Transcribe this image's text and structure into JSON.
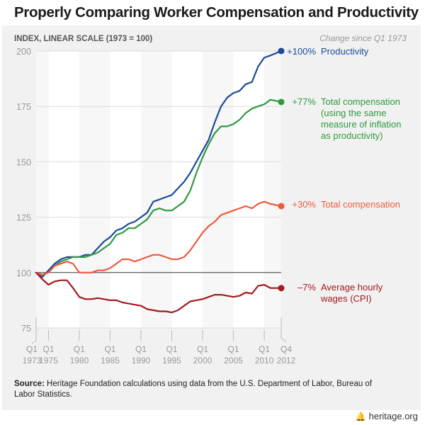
{
  "title": "Properly Comparing Worker Compensation and Productivity",
  "source_label": "Source:",
  "source_text": "Heritage Foundation calculations using data from the U.S. Department of Labor, Bureau of Labor Statistics.",
  "footer": {
    "logo_icon": "bell-icon",
    "site": "heritage.org"
  },
  "chart_data": {
    "type": "line",
    "ylabel": "INDEX, LINEAR SCALE (1973 = 100)",
    "legend_header": "Change since Q1 1973",
    "ylim": [
      75,
      200
    ],
    "xlim": [
      1973,
      2012.75
    ],
    "yticks": [
      75,
      100,
      125,
      150,
      175,
      200
    ],
    "reference_line": 100,
    "xticks": [
      {
        "x": 1973,
        "q": "Q1",
        "year": "1973"
      },
      {
        "x": 1975,
        "q": "Q1",
        "year": "1975"
      },
      {
        "x": 1980,
        "q": "Q1",
        "year": "1980"
      },
      {
        "x": 1985,
        "q": "Q1",
        "year": "1985"
      },
      {
        "x": 1990,
        "q": "Q1",
        "year": "1990"
      },
      {
        "x": 1995,
        "q": "Q1",
        "year": "1995"
      },
      {
        "x": 2000,
        "q": "Q1",
        "year": "2000"
      },
      {
        "x": 2005,
        "q": "Q1",
        "year": "2005"
      },
      {
        "x": 2010,
        "q": "Q1",
        "year": "2010"
      },
      {
        "x": 2012.75,
        "q": "Q4",
        "year": "2012"
      }
    ],
    "x": [
      1973,
      1974,
      1975,
      1976,
      1977,
      1978,
      1979,
      1980,
      1981,
      1982,
      1983,
      1984,
      1985,
      1986,
      1987,
      1988,
      1989,
      1990,
      1991,
      1992,
      1993,
      1994,
      1995,
      1996,
      1997,
      1998,
      1999,
      2000,
      2001,
      2002,
      2003,
      2004,
      2005,
      2006,
      2007,
      2008,
      2009,
      2010,
      2011,
      2012.75
    ],
    "series": [
      {
        "name": "Productivity",
        "change": "+100%",
        "label_lines": [
          "Productivity"
        ],
        "color": "#1a4a9c",
        "values": [
          100,
          98,
          101,
          104,
          106,
          107,
          107,
          107,
          108,
          108,
          111,
          114,
          116,
          119,
          120,
          122,
          123,
          125,
          127,
          132,
          133,
          134,
          135,
          138,
          141,
          145,
          150,
          155,
          160,
          168,
          175,
          179,
          181,
          182,
          185,
          186,
          193,
          197,
          198,
          200
        ]
      },
      {
        "name": "Total compensation (using the same measure of inflation as productivity)",
        "change": "+77%",
        "label_lines": [
          "Total compensation",
          "(using the same",
          "measure of inflation",
          "as productivity)"
        ],
        "color": "#2e9a3e",
        "values": [
          100,
          99,
          100,
          103,
          105,
          106,
          107,
          107,
          107,
          108,
          109,
          111,
          113,
          117,
          118,
          120,
          120,
          122,
          124,
          128,
          129,
          128,
          128,
          130,
          132,
          137,
          145,
          152,
          158,
          163,
          166,
          166,
          167,
          169,
          172,
          174,
          175,
          176,
          178,
          177
        ]
      },
      {
        "name": "Total compensation",
        "change": "+30%",
        "label_lines": [
          "Total compensation"
        ],
        "color": "#ee5a3c",
        "values": [
          100,
          99,
          100,
          103,
          104,
          105,
          104,
          100,
          100,
          100,
          101,
          101,
          102,
          104,
          106,
          106,
          105,
          106,
          107,
          108,
          108,
          107,
          106,
          106,
          107,
          110,
          114,
          118,
          121,
          123,
          126,
          127,
          128,
          129,
          130,
          129,
          131,
          132,
          131,
          130
        ]
      },
      {
        "name": "Average hourly wages (CPI)",
        "change": "–7%",
        "label_lines": [
          "Average hourly",
          "wages (CPI)"
        ],
        "color": "#a3191e",
        "values": [
          100,
          97,
          94.5,
          96,
          96.5,
          96.5,
          93,
          89,
          88,
          88,
          88.5,
          88,
          87.5,
          87.5,
          86.5,
          86,
          85.5,
          85,
          83.5,
          83,
          82.5,
          82.5,
          82,
          83,
          85,
          87,
          87.5,
          88,
          89,
          90,
          90,
          89.5,
          89,
          89.5,
          91,
          90.5,
          94,
          94.5,
          93,
          93
        ]
      }
    ]
  }
}
